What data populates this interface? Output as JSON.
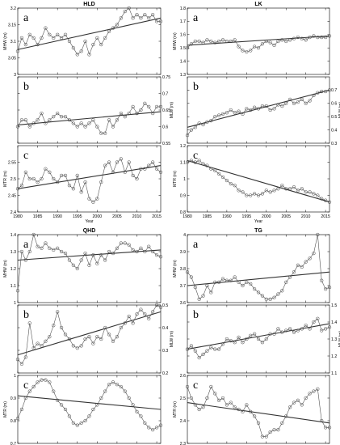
{
  "figure": {
    "width": 421,
    "height": 550
  },
  "years": [
    1980,
    1981,
    1982,
    1983,
    1984,
    1985,
    1986,
    1987,
    1988,
    1989,
    1990,
    1991,
    1992,
    1993,
    1994,
    1995,
    1996,
    1997,
    1998,
    1999,
    2000,
    2001,
    2002,
    2003,
    2004,
    2005,
    2006,
    2007,
    2008,
    2009,
    2010,
    2011,
    2012,
    2013,
    2014,
    2015,
    2016
  ],
  "x_ticks": [
    1980,
    1985,
    1990,
    1995,
    2000,
    2005,
    2010,
    2015
  ],
  "x_range": [
    1980,
    2016
  ],
  "chart_data": [
    {
      "type": "line",
      "station": "HLD",
      "xlabel": "Year",
      "panels": [
        {
          "letter": "a",
          "ylabel": "MHW (m)",
          "side": "left",
          "ylim": [
            3.0,
            3.2
          ],
          "yticks": [
            3,
            3.05,
            3.1,
            3.15,
            3.2
          ],
          "values": [
            3.07,
            3.11,
            3.09,
            3.12,
            3.11,
            3.09,
            3.11,
            3.14,
            3.12,
            3.11,
            3.12,
            3.11,
            3.12,
            3.1,
            3.08,
            3.06,
            3.07,
            3.1,
            3.06,
            3.09,
            3.11,
            3.09,
            3.11,
            3.13,
            3.14,
            3.15,
            3.17,
            3.19,
            3.2,
            3.17,
            3.18,
            3.17,
            3.18,
            3.17,
            3.18,
            3.16,
            3.16
          ],
          "trend": [
            3.075,
            3.17
          ]
        },
        {
          "letter": "b",
          "ylabel": "MLW (m)",
          "side": "right",
          "ylim": [
            0.55,
            0.75
          ],
          "yticks": [
            0.55,
            0.6,
            0.65,
            0.7,
            0.75
          ],
          "values": [
            0.6,
            0.62,
            0.62,
            0.6,
            0.61,
            0.62,
            0.64,
            0.61,
            0.62,
            0.63,
            0.64,
            0.63,
            0.63,
            0.62,
            0.61,
            0.6,
            0.61,
            0.6,
            0.61,
            0.62,
            0.6,
            0.58,
            0.58,
            0.62,
            0.6,
            0.62,
            0.64,
            0.63,
            0.64,
            0.66,
            0.64,
            0.65,
            0.67,
            0.66,
            0.64,
            0.66,
            0.66
          ],
          "trend": [
            0.605,
            0.645
          ]
        },
        {
          "letter": "c",
          "ylabel": "MTR (m)",
          "side": "left",
          "ylim": [
            2.4,
            2.6
          ],
          "yticks": [
            2.4,
            2.45,
            2.5,
            2.55
          ],
          "values": [
            2.47,
            2.48,
            2.52,
            2.5,
            2.5,
            2.49,
            2.5,
            2.53,
            2.52,
            2.5,
            2.49,
            2.51,
            2.51,
            2.48,
            2.47,
            2.51,
            2.46,
            2.49,
            2.44,
            2.43,
            2.44,
            2.49,
            2.54,
            2.55,
            2.52,
            2.55,
            2.56,
            2.52,
            2.55,
            2.51,
            2.5,
            2.53,
            2.53,
            2.54,
            2.55,
            2.53,
            2.52
          ],
          "trend": [
            2.47,
            2.54
          ]
        }
      ]
    },
    {
      "type": "line",
      "station": "LK",
      "xlabel": "Year",
      "panels": [
        {
          "letter": "a",
          "ylabel": "MHW (m)",
          "side": "left",
          "ylim": [
            1.3,
            1.8
          ],
          "yticks": [
            1.3,
            1.4,
            1.5,
            1.6,
            1.7,
            1.8
          ],
          "values": [
            1.5,
            1.53,
            1.55,
            1.55,
            1.54,
            1.56,
            1.55,
            1.54,
            1.55,
            1.56,
            1.55,
            1.55,
            1.56,
            1.51,
            1.48,
            1.47,
            1.48,
            1.51,
            1.5,
            1.53,
            1.55,
            1.54,
            1.52,
            1.55,
            1.56,
            1.55,
            1.56,
            1.57,
            1.58,
            1.57,
            1.56,
            1.58,
            1.59,
            1.58,
            1.58,
            1.58,
            1.59
          ],
          "trend": [
            1.52,
            1.59
          ]
        },
        {
          "letter": "b",
          "ylabel": "MLW (m)",
          "side": "right",
          "ylim": [
            0.3,
            0.8
          ],
          "yticks": [
            0.3,
            0.4,
            0.5,
            0.6,
            0.7
          ],
          "values": [
            0.36,
            0.4,
            0.42,
            0.45,
            0.44,
            0.46,
            0.47,
            0.5,
            0.51,
            0.52,
            0.53,
            0.55,
            0.53,
            0.54,
            0.52,
            0.56,
            0.55,
            0.57,
            0.56,
            0.58,
            0.58,
            0.55,
            0.56,
            0.59,
            0.58,
            0.6,
            0.63,
            0.6,
            0.61,
            0.63,
            0.6,
            0.62,
            0.66,
            0.68,
            0.69,
            0.69,
            0.7
          ],
          "trend": [
            0.42,
            0.7
          ]
        },
        {
          "letter": "c",
          "ylabel": "MTR (m)",
          "side": "left",
          "ylim": [
            0.8,
            1.2
          ],
          "yticks": [
            0.8,
            0.9,
            1.0,
            1.1,
            1.2
          ],
          "values": [
            1.1,
            1.11,
            1.1,
            1.11,
            1.09,
            1.08,
            1.06,
            1.05,
            1.03,
            1.01,
            0.99,
            0.97,
            0.96,
            0.93,
            0.92,
            0.9,
            0.9,
            0.91,
            0.9,
            0.91,
            0.93,
            0.92,
            0.93,
            0.94,
            0.96,
            0.94,
            0.94,
            0.95,
            0.93,
            0.94,
            0.92,
            0.92,
            0.91,
            0.9,
            0.88,
            0.87,
            0.86
          ],
          "trend": [
            1.11,
            0.86
          ]
        }
      ]
    },
    {
      "type": "line",
      "station": "QHD",
      "xlabel": "Year",
      "panels": [
        {
          "letter": "a",
          "ylabel": "MHW (m)",
          "side": "left",
          "ylim": [
            1.0,
            1.4
          ],
          "yticks": [
            1.0,
            1.1,
            1.2,
            1.3,
            1.4
          ],
          "values": [
            1.07,
            1.3,
            1.25,
            1.3,
            1.4,
            1.33,
            1.32,
            1.35,
            1.32,
            1.31,
            1.32,
            1.3,
            1.29,
            1.25,
            1.22,
            1.2,
            1.25,
            1.29,
            1.22,
            1.28,
            1.23,
            1.28,
            1.25,
            1.3,
            1.29,
            1.32,
            1.35,
            1.35,
            1.34,
            1.31,
            1.3,
            1.32,
            1.3,
            1.33,
            1.3,
            1.28,
            1.27
          ],
          "trend": [
            1.25,
            1.31
          ]
        },
        {
          "letter": "b",
          "ylabel": "MLW (m)",
          "side": "right",
          "ylim": [
            0.2,
            0.5
          ],
          "yticks": [
            0.2,
            0.3,
            0.4,
            0.5
          ],
          "values": [
            0.26,
            0.24,
            0.27,
            0.42,
            0.31,
            0.33,
            0.32,
            0.34,
            0.36,
            0.41,
            0.47,
            0.4,
            0.37,
            0.35,
            0.32,
            0.31,
            0.32,
            0.35,
            0.36,
            0.33,
            0.36,
            0.35,
            0.4,
            0.37,
            0.34,
            0.36,
            0.4,
            0.42,
            0.45,
            0.42,
            0.46,
            0.48,
            0.46,
            0.44,
            0.47,
            0.5,
            0.49
          ],
          "trend": [
            0.28,
            0.47
          ]
        },
        {
          "letter": "c",
          "ylabel": "MTR (m)",
          "side": "left",
          "ylim": [
            0.7,
            1.0
          ],
          "yticks": [
            0.7,
            0.8,
            0.9,
            1.0
          ],
          "values": [
            0.81,
            0.85,
            0.9,
            0.93,
            0.95,
            0.97,
            0.98,
            0.98,
            0.97,
            0.93,
            0.89,
            0.87,
            0.85,
            0.82,
            0.79,
            0.78,
            0.79,
            0.8,
            0.82,
            0.85,
            0.87,
            0.9,
            0.93,
            0.96,
            0.97,
            0.96,
            0.95,
            0.93,
            0.9,
            0.87,
            0.84,
            0.82,
            0.79,
            0.77,
            0.76,
            0.77,
            0.78
          ],
          "trend": [
            0.91,
            0.85
          ]
        }
      ]
    },
    {
      "type": "line",
      "station": "TG",
      "xlabel": "Year",
      "panels": [
        {
          "letter": "a",
          "ylabel": "MHW (m)",
          "side": "left",
          "ylim": [
            3.6,
            4.0
          ],
          "yticks": [
            3.6,
            3.7,
            3.8,
            3.9,
            4.0
          ],
          "values": [
            3.78,
            3.75,
            3.69,
            3.62,
            3.64,
            3.7,
            3.66,
            3.72,
            3.72,
            3.74,
            3.73,
            3.73,
            3.75,
            3.72,
            3.7,
            3.72,
            3.71,
            3.68,
            3.66,
            3.64,
            3.62,
            3.62,
            3.63,
            3.65,
            3.67,
            3.72,
            3.75,
            3.78,
            3.82,
            3.81,
            3.84,
            3.86,
            3.89,
            4.0,
            3.73,
            3.68,
            3.69
          ],
          "trend": [
            3.7,
            3.78
          ]
        },
        {
          "letter": "b",
          "ylabel": "MLW (m)",
          "side": "right",
          "ylim": [
            1.1,
            1.5
          ],
          "yticks": [
            1.1,
            1.2,
            1.3,
            1.4,
            1.5
          ],
          "values": [
            1.24,
            1.26,
            1.23,
            1.19,
            1.21,
            1.23,
            1.25,
            1.24,
            1.24,
            1.27,
            1.3,
            1.29,
            1.28,
            1.31,
            1.28,
            1.3,
            1.32,
            1.33,
            1.3,
            1.28,
            1.3,
            1.33,
            1.33,
            1.36,
            1.34,
            1.35,
            1.36,
            1.34,
            1.35,
            1.36,
            1.38,
            1.36,
            1.4,
            1.42,
            1.35,
            1.36,
            1.37
          ],
          "trend": [
            1.24,
            1.39
          ]
        },
        {
          "letter": "c",
          "ylabel": "MTR (m)",
          "side": "left",
          "ylim": [
            2.3,
            2.6
          ],
          "yticks": [
            2.3,
            2.4,
            2.5,
            2.6
          ],
          "values": [
            2.55,
            2.5,
            2.47,
            2.45,
            2.46,
            2.5,
            2.55,
            2.52,
            2.49,
            2.5,
            2.47,
            2.48,
            2.46,
            2.45,
            2.44,
            2.47,
            2.44,
            2.42,
            2.39,
            2.33,
            2.33,
            2.35,
            2.36,
            2.36,
            2.39,
            2.42,
            2.46,
            2.48,
            2.49,
            2.47,
            2.5,
            2.52,
            2.53,
            2.54,
            2.4,
            2.37,
            2.37
          ],
          "trend": [
            2.48,
            2.39
          ]
        }
      ]
    }
  ]
}
